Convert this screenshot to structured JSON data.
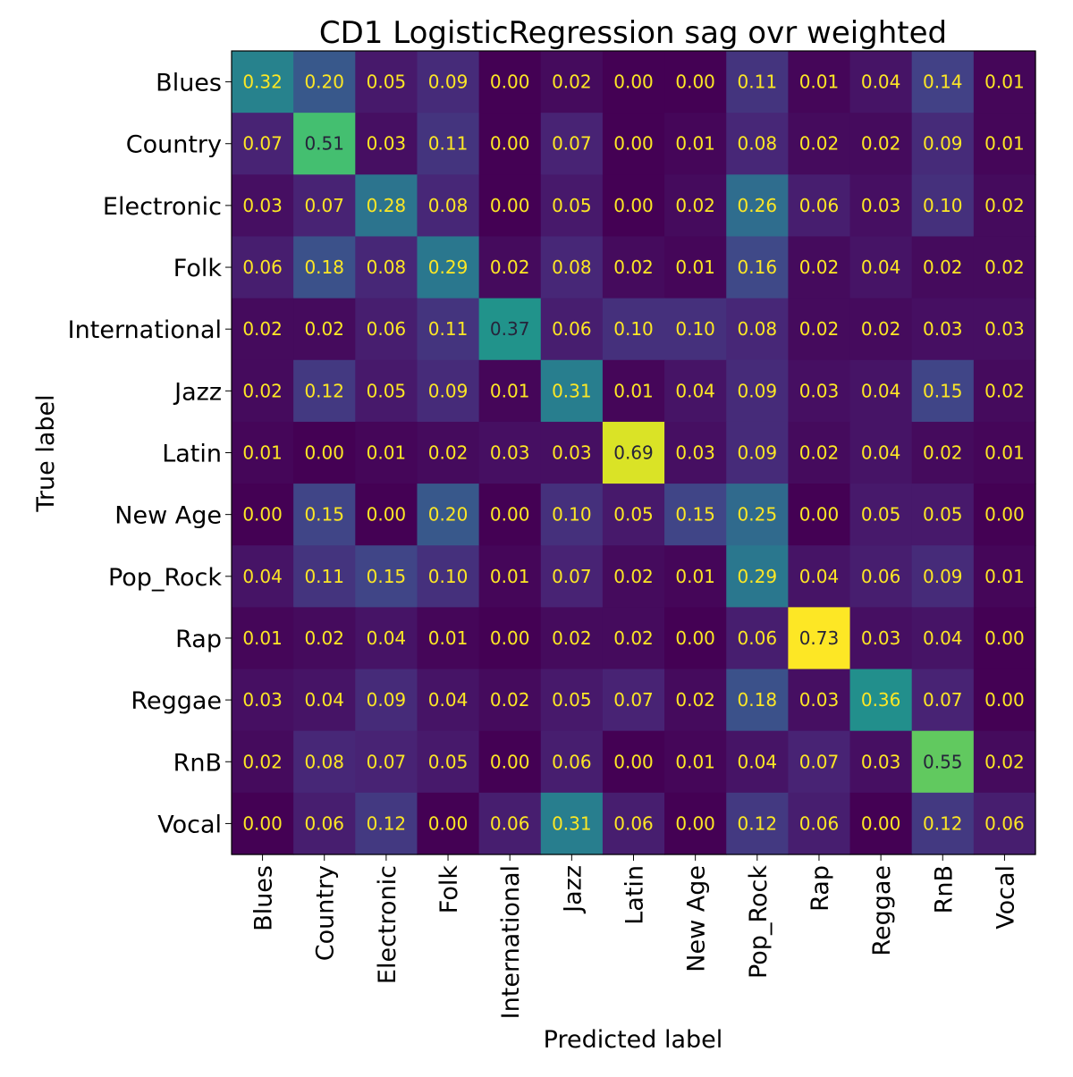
{
  "chart_data": {
    "type": "heatmap",
    "title": "CD1 LogisticRegression sag ovr weighted",
    "xlabel": "Predicted label",
    "ylabel": "True label",
    "x_categories": [
      "Blues",
      "Country",
      "Electronic",
      "Folk",
      "International",
      "Jazz",
      "Latin",
      "New Age",
      "Pop_Rock",
      "Rap",
      "Reggae",
      "RnB",
      "Vocal"
    ],
    "y_categories": [
      "Blues",
      "Country",
      "Electronic",
      "Folk",
      "International",
      "Jazz",
      "Latin",
      "New Age",
      "Pop_Rock",
      "Rap",
      "Reggae",
      "RnB",
      "Vocal"
    ],
    "values": [
      [
        0.32,
        0.2,
        0.05,
        0.09,
        0.0,
        0.02,
        0.0,
        0.0,
        0.11,
        0.01,
        0.04,
        0.14,
        0.01
      ],
      [
        0.07,
        0.51,
        0.03,
        0.11,
        0.0,
        0.07,
        0.0,
        0.01,
        0.08,
        0.02,
        0.02,
        0.09,
        0.01
      ],
      [
        0.03,
        0.07,
        0.28,
        0.08,
        0.0,
        0.05,
        0.0,
        0.02,
        0.26,
        0.06,
        0.03,
        0.1,
        0.02
      ],
      [
        0.06,
        0.18,
        0.08,
        0.29,
        0.02,
        0.08,
        0.02,
        0.01,
        0.16,
        0.02,
        0.04,
        0.02,
        0.02
      ],
      [
        0.02,
        0.02,
        0.06,
        0.11,
        0.37,
        0.06,
        0.1,
        0.1,
        0.08,
        0.02,
        0.02,
        0.03,
        0.03
      ],
      [
        0.02,
        0.12,
        0.05,
        0.09,
        0.01,
        0.31,
        0.01,
        0.04,
        0.09,
        0.03,
        0.04,
        0.15,
        0.02
      ],
      [
        0.01,
        0.0,
        0.01,
        0.02,
        0.03,
        0.03,
        0.69,
        0.03,
        0.09,
        0.02,
        0.04,
        0.02,
        0.01
      ],
      [
        0.0,
        0.15,
        0.0,
        0.2,
        0.0,
        0.1,
        0.05,
        0.15,
        0.25,
        0.0,
        0.05,
        0.05,
        0.0
      ],
      [
        0.04,
        0.11,
        0.15,
        0.1,
        0.01,
        0.07,
        0.02,
        0.01,
        0.29,
        0.04,
        0.06,
        0.09,
        0.01
      ],
      [
        0.01,
        0.02,
        0.04,
        0.01,
        0.0,
        0.02,
        0.02,
        0.0,
        0.06,
        0.73,
        0.03,
        0.04,
        0.0
      ],
      [
        0.03,
        0.04,
        0.09,
        0.04,
        0.02,
        0.05,
        0.07,
        0.02,
        0.18,
        0.03,
        0.36,
        0.07,
        0.0
      ],
      [
        0.02,
        0.08,
        0.07,
        0.05,
        0.0,
        0.06,
        0.0,
        0.01,
        0.04,
        0.07,
        0.03,
        0.55,
        0.02
      ],
      [
        0.0,
        0.06,
        0.12,
        0.0,
        0.06,
        0.31,
        0.06,
        0.0,
        0.12,
        0.06,
        0.0,
        0.12,
        0.06
      ]
    ],
    "colormap": "viridis",
    "value_range": [
      0,
      0.73
    ],
    "colors": {
      "text_light": "#fde725",
      "text_dark": "#26233a",
      "axis": "#000000"
    },
    "grid": false,
    "legend": "none"
  }
}
